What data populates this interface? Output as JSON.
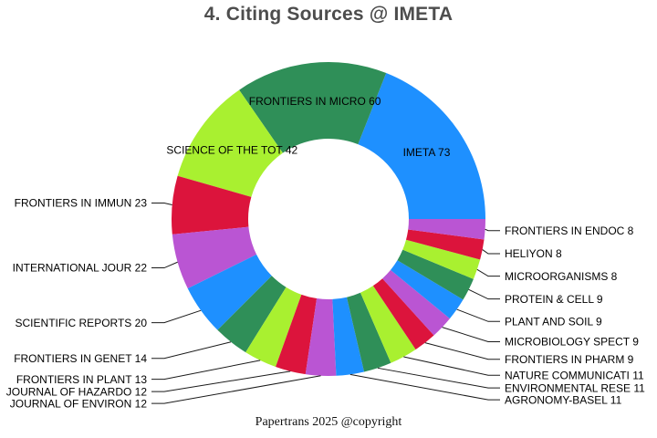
{
  "title": "4. Citing Sources @ IMETA",
  "footer": "Papertrans 2025 @copyright",
  "chart_data": {
    "type": "pie",
    "subtype": "donut",
    "title": "4. Citing Sources @ IMETA",
    "total": 384,
    "start_angle_deg": 0,
    "direction": "counterclockwise",
    "legend_position": "none",
    "label_style": "name value, largest slices labeled inside, others outside with leader lines",
    "palette": [
      "#1e90ff",
      "#2f8f58",
      "#a9f030",
      "#dc143c",
      "#ba55d3"
    ],
    "items": [
      {
        "label": "IMETA",
        "value": 73,
        "color": "#1e90ff",
        "label_inside": true
      },
      {
        "label": "FRONTIERS IN MICRO",
        "value": 60,
        "color": "#2f8f58",
        "label_inside": true
      },
      {
        "label": "SCIENCE OF THE TOT",
        "value": 42,
        "color": "#a9f030",
        "label_inside": true
      },
      {
        "label": "FRONTIERS IN IMMUN",
        "value": 23,
        "color": "#dc143c",
        "label_inside": false
      },
      {
        "label": "INTERNATIONAL JOUR",
        "value": 22,
        "color": "#ba55d3",
        "label_inside": false
      },
      {
        "label": "SCIENTIFIC REPORTS",
        "value": 20,
        "color": "#1e90ff",
        "label_inside": false
      },
      {
        "label": "FRONTIERS IN GENET",
        "value": 14,
        "color": "#2f8f58",
        "label_inside": false
      },
      {
        "label": "FRONTIERS IN PLANT",
        "value": 13,
        "color": "#a9f030",
        "label_inside": false
      },
      {
        "label": "JOURNAL OF HAZARDO",
        "value": 12,
        "color": "#dc143c",
        "label_inside": false
      },
      {
        "label": "JOURNAL OF ENVIRON",
        "value": 12,
        "color": "#ba55d3",
        "label_inside": false
      },
      {
        "label": "AGRONOMY-BASEL",
        "value": 11,
        "color": "#1e90ff",
        "label_inside": false
      },
      {
        "label": "ENVIRONMENTAL RESE",
        "value": 11,
        "color": "#2f8f58",
        "label_inside": false
      },
      {
        "label": "NATURE COMMUNICATI",
        "value": 11,
        "color": "#a9f030",
        "label_inside": false
      },
      {
        "label": "FRONTIERS IN PHARM",
        "value": 9,
        "color": "#dc143c",
        "label_inside": false
      },
      {
        "label": "MICROBIOLOGY SPECT",
        "value": 9,
        "color": "#ba55d3",
        "label_inside": false
      },
      {
        "label": "PLANT AND SOIL",
        "value": 9,
        "color": "#1e90ff",
        "label_inside": false
      },
      {
        "label": "PROTEIN & CELL",
        "value": 9,
        "color": "#2f8f58",
        "label_inside": false
      },
      {
        "label": "MICROORGANISMS",
        "value": 8,
        "color": "#a9f030",
        "label_inside": false
      },
      {
        "label": "HELIYON",
        "value": 8,
        "color": "#dc143c",
        "label_inside": false
      },
      {
        "label": "FRONTIERS IN ENDOC",
        "value": 8,
        "color": "#ba55d3",
        "label_inside": false
      }
    ]
  }
}
